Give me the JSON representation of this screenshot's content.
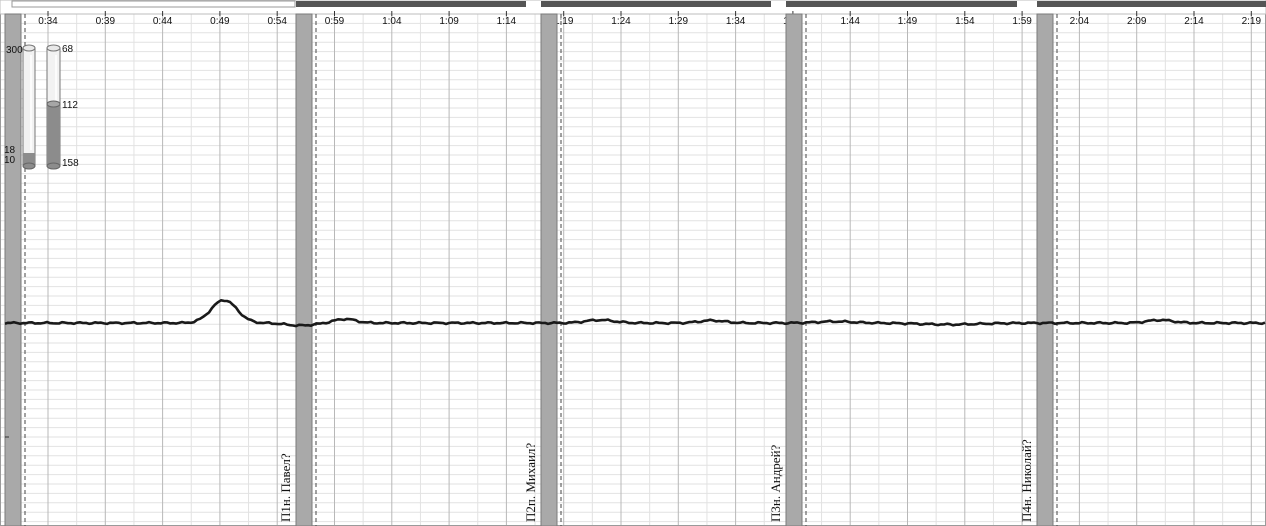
{
  "timeline": {
    "ticks": [
      "0:34",
      "0:39",
      "0:44",
      "0:49",
      "0:54",
      "0:59",
      "1:04",
      "1:09",
      "1:14",
      "1:19",
      "1:24",
      "1:29",
      "1:34",
      "1:39",
      "1:44",
      "1:49",
      "1:54",
      "1:59",
      "2:04",
      "2:09",
      "2:14",
      "2:19"
    ]
  },
  "markers": [
    {
      "label": "П1н. Павел?"
    },
    {
      "label": "П2п. Михаил?"
    },
    {
      "label": "П3н. Андрей?"
    },
    {
      "label": "П4н. Николай?"
    }
  ],
  "gauges": {
    "left": {
      "top_label": "300",
      "bottom_label_a": "18",
      "bottom_label_b": "10"
    },
    "right": {
      "top_label": "68",
      "mid_label": "112",
      "bottom_label": "158"
    }
  },
  "colors": {
    "background": "#ffffff",
    "grid_major": "#b8b8b8",
    "grid_minor": "#e2e2e2",
    "marker_bar": "#a9a9a9",
    "segment_bar": "#555555",
    "trace": "#1a1a1a"
  }
}
